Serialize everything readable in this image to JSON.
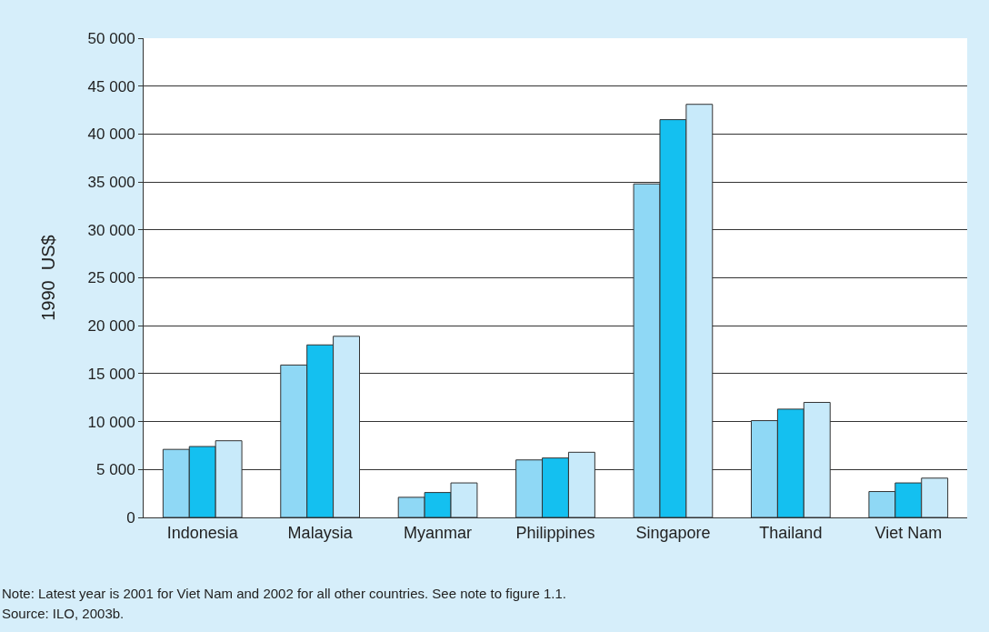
{
  "chart_data": {
    "type": "bar",
    "ylabel": "1990  US$",
    "categories": [
      "Indonesia",
      "Malaysia",
      "Myanmar",
      "Philippines",
      "Singapore",
      "Thailand",
      "Viet Nam"
    ],
    "series": [
      {
        "color": "#8fd8f5",
        "values": [
          7100,
          15900,
          2100,
          6000,
          34800,
          10100,
          2700
        ]
      },
      {
        "color": "#14c0f0",
        "values": [
          7400,
          18000,
          2600,
          6200,
          41500,
          11300,
          3600
        ]
      },
      {
        "color": "#c8eafa",
        "values": [
          8000,
          18900,
          3600,
          6800,
          43100,
          12000,
          4100
        ]
      }
    ],
    "ylim": [
      0,
      50000
    ],
    "yticks": [
      0,
      {
        "value": 5000,
        "label": "5 000"
      },
      {
        "value": 10000,
        "label": "10 000"
      },
      {
        "value": 15000,
        "label": "15 000"
      },
      {
        "value": 20000,
        "label": "20 000"
      },
      {
        "value": 25000,
        "label": "25 000"
      },
      {
        "value": 30000,
        "label": "30 000"
      },
      {
        "value": 35000,
        "label": "35 000"
      },
      {
        "value": 40000,
        "label": "40 000"
      },
      {
        "value": 45000,
        "label": "45 000"
      },
      {
        "value": 50000,
        "label": "50 000"
      }
    ],
    "grid": "y",
    "annotations": [
      "Note: Latest year is 2001 for Viet Nam and 2002 for all other countries. See note to figure 1.1.",
      "Source: ILO, 2003b."
    ]
  }
}
